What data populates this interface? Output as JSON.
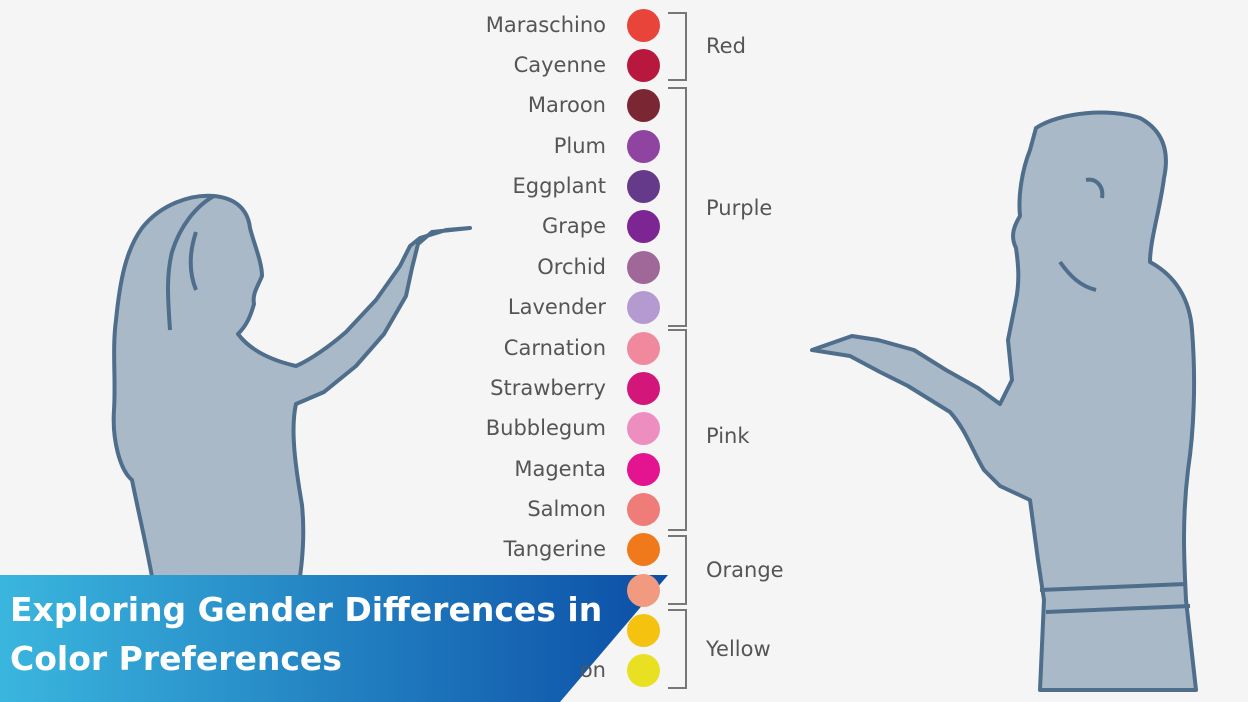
{
  "title": "Exploring Gender Differences in Color Preferences",
  "swatches": [
    {
      "name": "Maraschino",
      "color": "#e8443a"
    },
    {
      "name": "Cayenne",
      "color": "#b8173e"
    },
    {
      "name": "Maroon",
      "color": "#7a2633"
    },
    {
      "name": "Plum",
      "color": "#8e44a0"
    },
    {
      "name": "Eggplant",
      "color": "#663a8a"
    },
    {
      "name": "Grape",
      "color": "#7d2592"
    },
    {
      "name": "Orchid",
      "color": "#a06898"
    },
    {
      "name": "Lavender",
      "color": "#b49ad0"
    },
    {
      "name": "Carnation",
      "color": "#f0899e"
    },
    {
      "name": "Strawberry",
      "color": "#d3177a"
    },
    {
      "name": "Bubblegum",
      "color": "#ee8ec0"
    },
    {
      "name": "Magenta",
      "color": "#e4138f"
    },
    {
      "name": "Salmon",
      "color": "#ef7c78"
    },
    {
      "name": "Tangerine",
      "color": "#f0791c"
    },
    {
      "name": "",
      "color": "#f29a80"
    },
    {
      "name": "",
      "color": "#f4c20f"
    },
    {
      "name": "on",
      "color": "#e8e020"
    }
  ],
  "groups": [
    {
      "label": "Red"
    },
    {
      "label": "Purple"
    },
    {
      "label": "Pink"
    },
    {
      "label": "Orange"
    },
    {
      "label": "Yellow"
    }
  ],
  "colors": {
    "figure_fill": "#a9b9c8",
    "figure_stroke": "#4f6e8c",
    "bracket": "#777777",
    "banner_start": "#3ab6de",
    "banner_end": "#0c4ea6"
  }
}
